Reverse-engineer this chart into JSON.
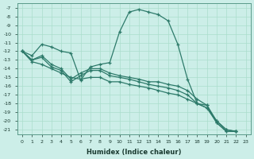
{
  "xlabel": "Humidex (Indice chaleur)",
  "background_color": "#cceee8",
  "grid_color": "#aaddcc",
  "line_color": "#2d7a6a",
  "marker": "+",
  "xlim": [
    -0.5,
    23.5
  ],
  "ylim": [
    -21.5,
    -6.5
  ],
  "xticks": [
    0,
    1,
    2,
    3,
    4,
    5,
    6,
    7,
    8,
    9,
    10,
    11,
    12,
    13,
    14,
    15,
    16,
    17,
    18,
    19,
    20,
    21,
    22,
    23
  ],
  "yticks": [
    -7,
    -8,
    -9,
    -10,
    -11,
    -12,
    -13,
    -14,
    -15,
    -16,
    -17,
    -18,
    -19,
    -20,
    -21
  ],
  "line1_x": [
    0,
    1,
    2,
    3,
    4,
    5,
    6,
    7,
    8,
    9,
    10,
    11,
    12,
    13,
    14,
    15,
    16,
    17,
    18,
    19,
    20,
    21,
    22
  ],
  "line1_y": [
    -12.0,
    -12.5,
    -11.2,
    -11.5,
    -12.0,
    -12.2,
    -15.3,
    -13.8,
    -13.5,
    -13.3,
    -9.8,
    -7.5,
    -7.2,
    -7.5,
    -7.8,
    -8.5,
    -11.2,
    -15.2,
    -18.0,
    -18.2,
    -20.2,
    -21.2,
    -21.2
  ],
  "line2_x": [
    0,
    1,
    2,
    3,
    4,
    5,
    6,
    7,
    8,
    9,
    10,
    11,
    12,
    13,
    14,
    15,
    16,
    17,
    18,
    19,
    20,
    21,
    22
  ],
  "line2_y": [
    -12.0,
    -13.0,
    -12.5,
    -13.5,
    -14.0,
    -15.2,
    -14.5,
    -14.0,
    -14.0,
    -14.5,
    -14.8,
    -15.0,
    -15.2,
    -15.5,
    -15.5,
    -15.8,
    -16.0,
    -16.5,
    -17.5,
    -18.2,
    -20.0,
    -21.0,
    -21.2
  ],
  "line3_x": [
    0,
    1,
    2,
    3,
    4,
    5,
    6,
    7,
    8,
    9,
    10,
    11,
    12,
    13,
    14,
    15,
    16,
    17,
    18,
    19,
    20,
    21,
    22
  ],
  "line3_y": [
    -12.0,
    -13.0,
    -12.7,
    -13.8,
    -14.2,
    -15.5,
    -14.8,
    -14.2,
    -14.2,
    -14.8,
    -15.0,
    -15.2,
    -15.5,
    -15.8,
    -16.0,
    -16.2,
    -16.5,
    -17.0,
    -18.0,
    -18.5,
    -20.2,
    -21.2,
    -21.2
  ],
  "line4_x": [
    0,
    1,
    2,
    3,
    4,
    5,
    6,
    7,
    8,
    9,
    10,
    11,
    12,
    13,
    14,
    15,
    16,
    17,
    18,
    19,
    20,
    21,
    22
  ],
  "line4_y": [
    -12.0,
    -13.2,
    -13.5,
    -14.0,
    -14.5,
    -15.0,
    -15.2,
    -15.0,
    -15.0,
    -15.5,
    -15.5,
    -15.8,
    -16.0,
    -16.2,
    -16.5,
    -16.8,
    -17.0,
    -17.5,
    -18.0,
    -18.5,
    -20.0,
    -21.0,
    -21.2
  ]
}
